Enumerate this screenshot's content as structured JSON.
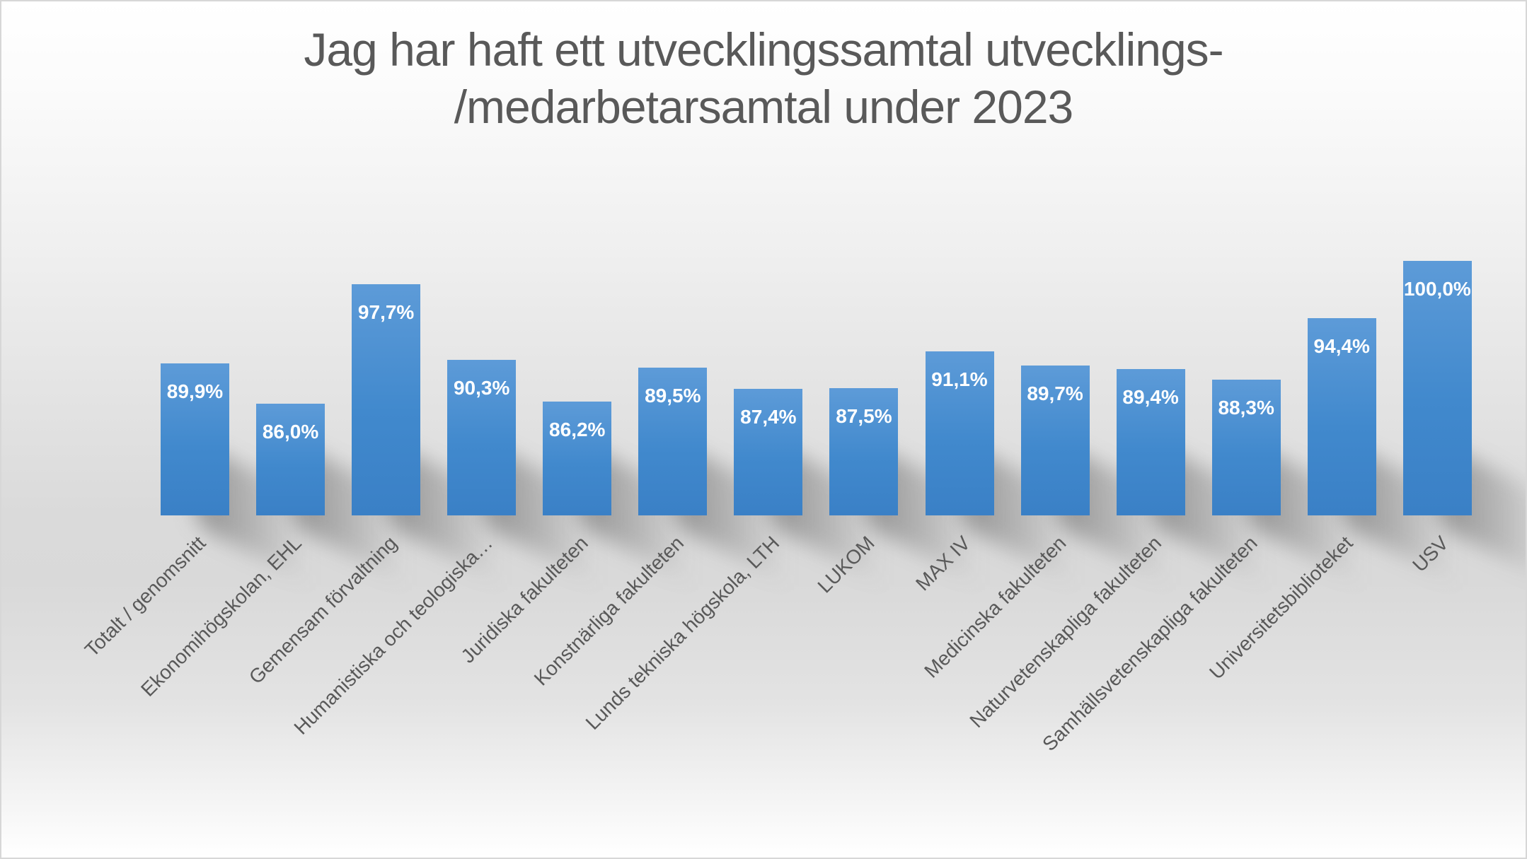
{
  "colors": {
    "bar_top": "#5d9bd8",
    "bar_mid": "#4189cd",
    "bar_bottom": "#3a80c6",
    "title_text": "#595959",
    "category_text": "#595959",
    "value_label_text": "#ffffff"
  },
  "chart_data": {
    "type": "bar",
    "title": "Jag har haft ett utvecklingssamtal utvecklings-/medarbetarsamtal under 2023",
    "title_lines": [
      "Jag har haft ett utvecklingssamtal utvecklings-",
      "/medarbetarsamtal under 2023"
    ],
    "categories": [
      "Totalt / genomsnitt",
      "Ekonomihögskolan, EHL",
      "Gemensam förvaltning",
      "Humanistiska och teologiska…",
      "Juridiska fakulteten",
      "Konstnärliga fakulteten",
      "Lunds tekniska högskola, LTH",
      "LUKOM",
      "MAX IV",
      "Medicinska fakulteten",
      "Naturvetenskapliga fakulteten",
      "Samhällsvetenskapliga fakulteten",
      "Universitetsbiblioteket",
      "USV"
    ],
    "values": [
      89.9,
      86.0,
      97.7,
      90.3,
      86.2,
      89.5,
      87.4,
      87.5,
      91.1,
      89.7,
      89.4,
      88.3,
      94.4,
      100.0
    ],
    "value_labels": [
      "89,9%",
      "86,0%",
      "97,7%",
      "90,3%",
      "86,2%",
      "89,5%",
      "87,4%",
      "87,5%",
      "91,1%",
      "89,7%",
      "89,4%",
      "88,3%",
      "94,4%",
      "100,0%"
    ],
    "xlabel": "",
    "ylabel": "",
    "ylim": [
      75,
      100
    ],
    "grid": false,
    "legend_position": "none",
    "data_label_style": "inside-end-white-bold",
    "category_label_rotation_deg": 45
  }
}
